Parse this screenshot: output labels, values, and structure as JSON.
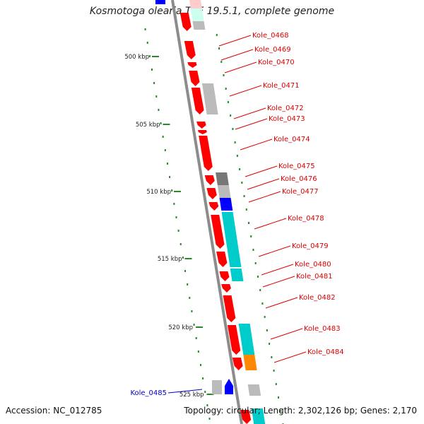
{
  "title": "Kosmotoga olearia TBF 19.5.1, complete genome",
  "accession": "Accession: NC_012785",
  "stats": "Topology: circular; Length: 2,302,126 bp; Genes: 2,170",
  "colors": {
    "backbone": "#8c8c8c",
    "gene_fwd_strand": "#ff0000",
    "label_red": "#dd0000",
    "label_blue": "#0000cc",
    "gc_cyan": "#00cccc",
    "gc_gray": "#bbbbbb",
    "gc_dark": "#777777",
    "gc_blue": "#0000ff",
    "gc_orange": "#ff8800",
    "tick_green": "#2a8a2a"
  },
  "kbp_ticks": [
    "500 kbp",
    "505 kbp",
    "510 kbp",
    "515 kbp",
    "520 kbp",
    "525 kbp"
  ],
  "gene_labels": [
    {
      "label": "Kole_0468",
      "color": "red"
    },
    {
      "label": "Kole_0469",
      "color": "red"
    },
    {
      "label": "Kole_0470",
      "color": "red"
    },
    {
      "label": "Kole_0471",
      "color": "red"
    },
    {
      "label": "Kole_0472",
      "color": "red"
    },
    {
      "label": "Kole_0473",
      "color": "red"
    },
    {
      "label": "Kole_0474",
      "color": "red"
    },
    {
      "label": "Kole_0475",
      "color": "red"
    },
    {
      "label": "Kole_0476",
      "color": "red"
    },
    {
      "label": "Kole_0477",
      "color": "red"
    },
    {
      "label": "Kole_0478",
      "color": "red"
    },
    {
      "label": "Kole_0479",
      "color": "red"
    },
    {
      "label": "Kole_0480",
      "color": "red"
    },
    {
      "label": "Kole_0481",
      "color": "red"
    },
    {
      "label": "Kole_0482",
      "color": "red"
    },
    {
      "label": "Kole_0483",
      "color": "red"
    },
    {
      "label": "Kole_0484",
      "color": "red"
    },
    {
      "label": "Kole_0485",
      "color": "blue"
    }
  ]
}
